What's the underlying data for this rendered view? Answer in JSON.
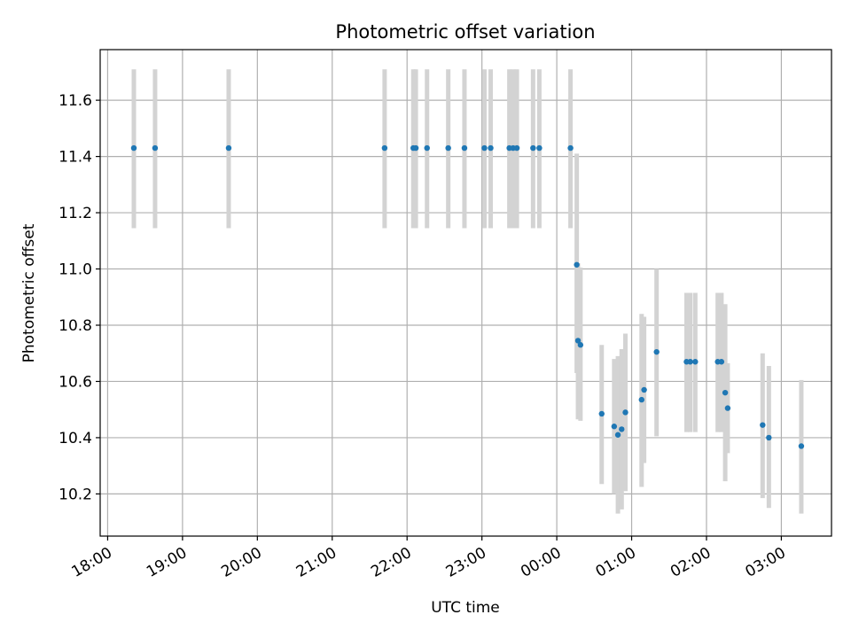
{
  "chart_data": {
    "type": "scatter",
    "title": "Photometric offset variation",
    "xlabel": "UTC time",
    "ylabel": "Photometric offset",
    "x_ticks": [
      "18:00",
      "19:00",
      "20:00",
      "21:00",
      "22:00",
      "23:00",
      "00:00",
      "01:00",
      "02:00",
      "03:00"
    ],
    "x_tick_hours": [
      18,
      19,
      20,
      21,
      22,
      23,
      24,
      25,
      26,
      27
    ],
    "y_ticks": [
      "10.2",
      "10.4",
      "10.6",
      "10.8",
      "11.0",
      "11.2",
      "11.4",
      "11.6"
    ],
    "y_tick_values": [
      10.2,
      10.4,
      10.6,
      10.8,
      11.0,
      11.2,
      11.4,
      11.6
    ],
    "xlim_hours": [
      17.9,
      27.67
    ],
    "ylim": [
      10.05,
      11.78
    ],
    "grid": true,
    "marker_color": "#1f77b4",
    "errorbar_color": "#d3d3d3",
    "points": [
      {
        "t": "18:21",
        "y": 11.43,
        "lo": 11.145,
        "hi": 11.71
      },
      {
        "t": "18:38",
        "y": 11.43,
        "lo": 11.145,
        "hi": 11.71
      },
      {
        "t": "19:37",
        "y": 11.43,
        "lo": 11.145,
        "hi": 11.71
      },
      {
        "t": "21:42",
        "y": 11.43,
        "lo": 11.145,
        "hi": 11.71
      },
      {
        "t": "22:05",
        "y": 11.43,
        "lo": 11.145,
        "hi": 11.71
      },
      {
        "t": "22:07",
        "y": 11.43,
        "lo": 11.145,
        "hi": 11.71
      },
      {
        "t": "22:16",
        "y": 11.43,
        "lo": 11.145,
        "hi": 11.71
      },
      {
        "t": "22:33",
        "y": 11.43,
        "lo": 11.145,
        "hi": 11.71
      },
      {
        "t": "22:46",
        "y": 11.43,
        "lo": 11.145,
        "hi": 11.71
      },
      {
        "t": "23:02",
        "y": 11.43,
        "lo": 11.145,
        "hi": 11.71
      },
      {
        "t": "23:07",
        "y": 11.43,
        "lo": 11.145,
        "hi": 11.71
      },
      {
        "t": "23:22",
        "y": 11.43,
        "lo": 11.145,
        "hi": 11.71
      },
      {
        "t": "23:25",
        "y": 11.43,
        "lo": 11.145,
        "hi": 11.71
      },
      {
        "t": "23:28",
        "y": 11.43,
        "lo": 11.145,
        "hi": 11.71
      },
      {
        "t": "23:41",
        "y": 11.43,
        "lo": 11.145,
        "hi": 11.71
      },
      {
        "t": "23:46",
        "y": 11.43,
        "lo": 11.145,
        "hi": 11.71
      },
      {
        "t": "00:11",
        "y": 11.43,
        "lo": 11.145,
        "hi": 11.71
      },
      {
        "t": "00:16",
        "y": 11.015,
        "lo": 10.63,
        "hi": 11.41
      },
      {
        "t": "00:17",
        "y": 10.745,
        "lo": 10.465,
        "hi": 11.02
      },
      {
        "t": "00:19",
        "y": 10.73,
        "lo": 10.46,
        "hi": 11.005
      },
      {
        "t": "00:36",
        "y": 10.485,
        "lo": 10.235,
        "hi": 10.73
      },
      {
        "t": "00:46",
        "y": 10.44,
        "lo": 10.2,
        "hi": 10.68
      },
      {
        "t": "00:49",
        "y": 10.41,
        "lo": 10.13,
        "hi": 10.69
      },
      {
        "t": "00:52",
        "y": 10.43,
        "lo": 10.145,
        "hi": 10.715
      },
      {
        "t": "00:55",
        "y": 10.49,
        "lo": 10.21,
        "hi": 10.77
      },
      {
        "t": "01:08",
        "y": 10.535,
        "lo": 10.225,
        "hi": 10.84
      },
      {
        "t": "01:10",
        "y": 10.57,
        "lo": 10.31,
        "hi": 10.83
      },
      {
        "t": "01:20",
        "y": 10.705,
        "lo": 10.405,
        "hi": 11.0
      },
      {
        "t": "01:44",
        "y": 10.67,
        "lo": 10.42,
        "hi": 10.915
      },
      {
        "t": "01:47",
        "y": 10.67,
        "lo": 10.42,
        "hi": 10.915
      },
      {
        "t": "01:51",
        "y": 10.67,
        "lo": 10.42,
        "hi": 10.915
      },
      {
        "t": "02:09",
        "y": 10.67,
        "lo": 10.42,
        "hi": 10.915
      },
      {
        "t": "02:12",
        "y": 10.67,
        "lo": 10.42,
        "hi": 10.915
      },
      {
        "t": "02:15",
        "y": 10.56,
        "lo": 10.245,
        "hi": 10.875
      },
      {
        "t": "02:17",
        "y": 10.505,
        "lo": 10.345,
        "hi": 10.665
      },
      {
        "t": "02:45",
        "y": 10.445,
        "lo": 10.185,
        "hi": 10.7
      },
      {
        "t": "02:50",
        "y": 10.4,
        "lo": 10.15,
        "hi": 10.655
      },
      {
        "t": "03:16",
        "y": 10.37,
        "lo": 10.13,
        "hi": 10.605
      }
    ]
  }
}
